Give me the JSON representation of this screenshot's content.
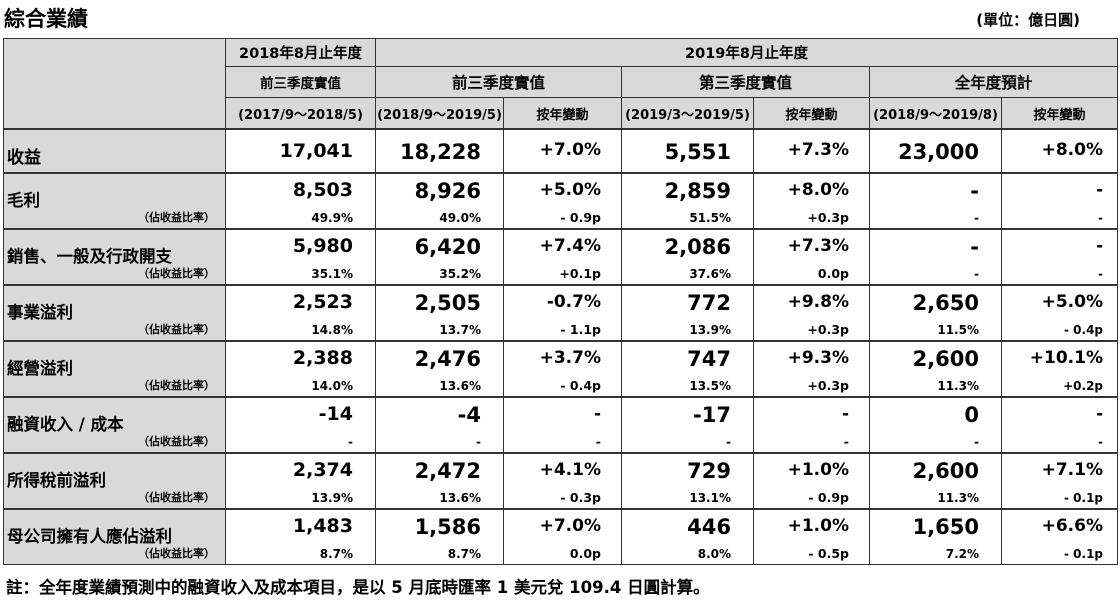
{
  "title": "綜合業績",
  "unit": "(單位：億日圓)",
  "header": {
    "prev_year": "2018年8月止年度",
    "curr_year": "2019年8月止年度",
    "prev_9m": "前三季度實值",
    "prev_9m_period": "(2017/9～2018/5)",
    "curr_9m": "前三季度實值",
    "curr_9m_period": "(2018/9～2019/5)",
    "q3": "第三季度實值",
    "q3_period": "(2019/3～2019/5)",
    "fy": "全年度預計",
    "fy_period": "(2018/9～2019/8)",
    "yoy": "按年變動"
  },
  "ratio_label": "（佔收益比率）",
  "rows": [
    {
      "label": "收益",
      "prev": "17,041",
      "cur": "18,228",
      "cur_yoy": "+7.0%",
      "q3": "5,551",
      "q3_yoy": "+7.3%",
      "fy": "23,000",
      "fy_yoy": "+8.0%",
      "prev_r": "",
      "cur_r": "",
      "cur_yoy_r": "",
      "q3_r": "",
      "q3_yoy_r": "",
      "fy_r": "",
      "fy_yoy_r": ""
    },
    {
      "label": "毛利",
      "prev": "8,503",
      "cur": "8,926",
      "cur_yoy": "+5.0%",
      "q3": "2,859",
      "q3_yoy": "+8.0%",
      "fy": "-",
      "fy_yoy": "-",
      "prev_r": "49.9%",
      "cur_r": "49.0%",
      "cur_yoy_r": "- 0.9p",
      "q3_r": "51.5%",
      "q3_yoy_r": "+0.3p",
      "fy_r": "-",
      "fy_yoy_r": "-"
    },
    {
      "label": "銷售、一般及行政開支",
      "prev": "5,980",
      "cur": "6,420",
      "cur_yoy": "+7.4%",
      "q3": "2,086",
      "q3_yoy": "+7.3%",
      "fy": "-",
      "fy_yoy": "-",
      "prev_r": "35.1%",
      "cur_r": "35.2%",
      "cur_yoy_r": "+0.1p",
      "q3_r": "37.6%",
      "q3_yoy_r": "0.0p",
      "fy_r": "-",
      "fy_yoy_r": "-"
    },
    {
      "label": "事業溢利",
      "prev": "2,523",
      "cur": "2,505",
      "cur_yoy": "-0.7%",
      "q3": "772",
      "q3_yoy": "+9.8%",
      "fy": "2,650",
      "fy_yoy": "+5.0%",
      "prev_r": "14.8%",
      "cur_r": "13.7%",
      "cur_yoy_r": "- 1.1p",
      "q3_r": "13.9%",
      "q3_yoy_r": "+0.3p",
      "fy_r": "11.5%",
      "fy_yoy_r": "- 0.4p"
    },
    {
      "label": "經營溢利",
      "prev": "2,388",
      "cur": "2,476",
      "cur_yoy": "+3.7%",
      "q3": "747",
      "q3_yoy": "+9.3%",
      "fy": "2,600",
      "fy_yoy": "+10.1%",
      "prev_r": "14.0%",
      "cur_r": "13.6%",
      "cur_yoy_r": "- 0.4p",
      "q3_r": "13.5%",
      "q3_yoy_r": "+0.3p",
      "fy_r": "11.3%",
      "fy_yoy_r": "+0.2p"
    },
    {
      "label": "融資收入 / 成本",
      "prev": "-14",
      "cur": "-4",
      "cur_yoy": "-",
      "q3": "-17",
      "q3_yoy": "-",
      "fy": "0",
      "fy_yoy": "-",
      "prev_r": "-",
      "cur_r": "-",
      "cur_yoy_r": "-",
      "q3_r": "-",
      "q3_yoy_r": "-",
      "fy_r": "-",
      "fy_yoy_r": "-"
    },
    {
      "label": "所得稅前溢利",
      "prev": "2,374",
      "cur": "2,472",
      "cur_yoy": "+4.1%",
      "q3": "729",
      "q3_yoy": "+1.0%",
      "fy": "2,600",
      "fy_yoy": "+7.1%",
      "prev_r": "13.9%",
      "cur_r": "13.6%",
      "cur_yoy_r": "- 0.3p",
      "q3_r": "13.1%",
      "q3_yoy_r": "- 0.9p",
      "fy_r": "11.3%",
      "fy_yoy_r": "- 0.1p"
    },
    {
      "label": "母公司擁有人應佔溢利",
      "prev": "1,483",
      "cur": "1,586",
      "cur_yoy": "+7.0%",
      "q3": "446",
      "q3_yoy": "+1.0%",
      "fy": "1,650",
      "fy_yoy": "+6.6%",
      "prev_r": "8.7%",
      "cur_r": "8.7%",
      "cur_yoy_r": "0.0p",
      "q3_r": "8.0%",
      "q3_yoy_r": "- 0.5p",
      "fy_r": "7.2%",
      "fy_yoy_r": "- 0.1p"
    }
  ],
  "note": "註：全年度業績預測中的融資收入及成本項目，是以 5 月底時匯率 1 美元兌 109.4 日圓計算。"
}
